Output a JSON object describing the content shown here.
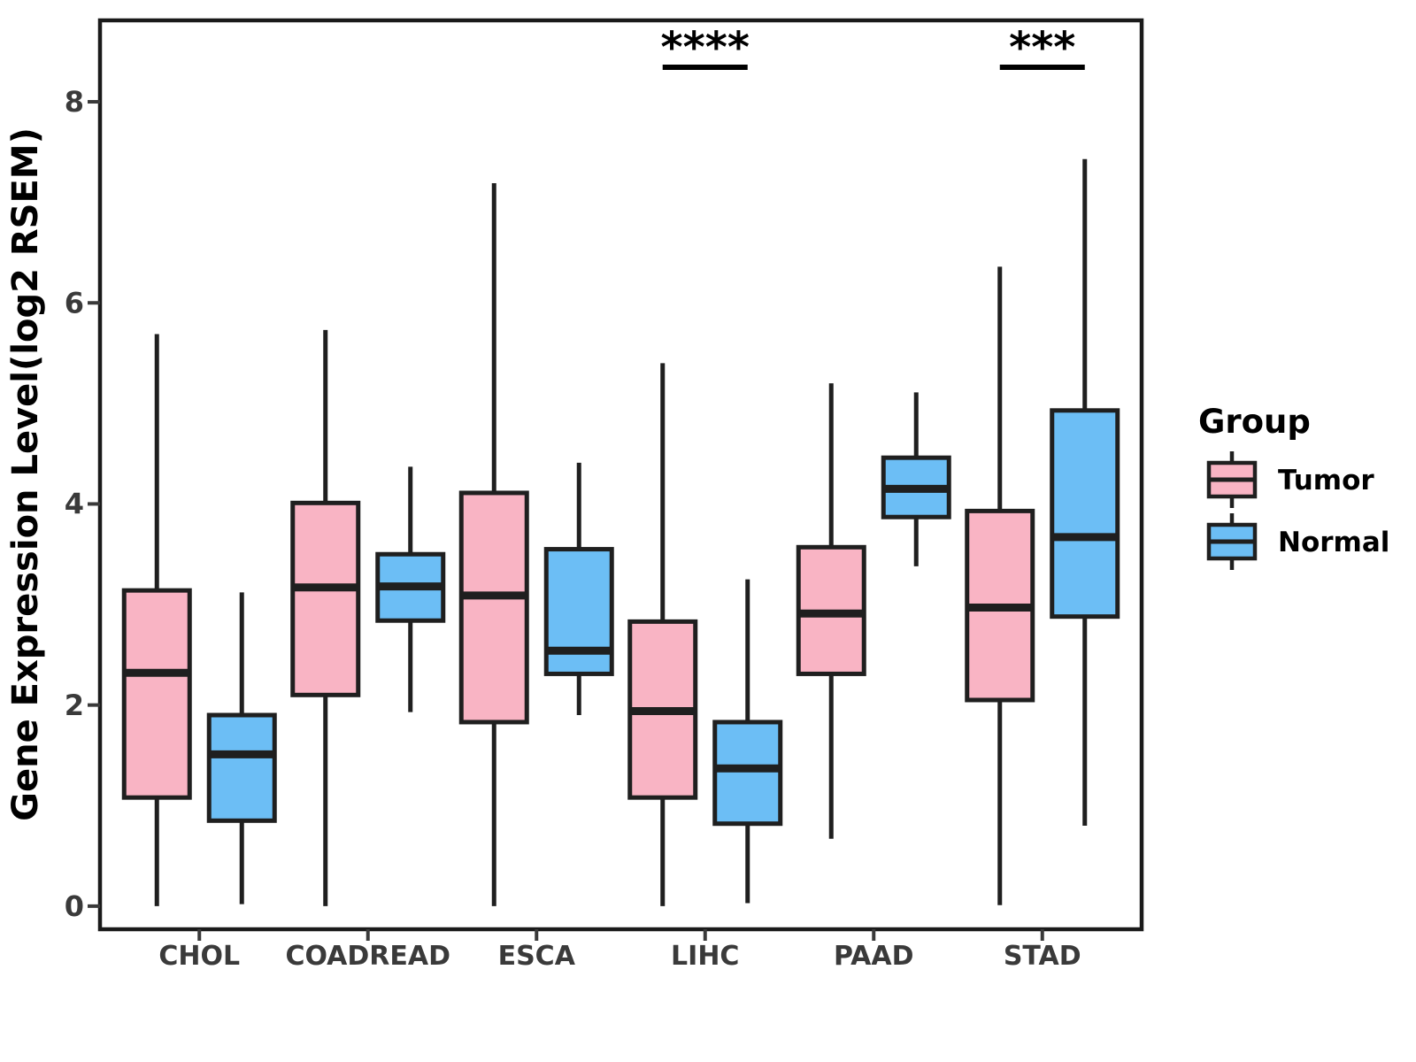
{
  "figure": {
    "aria_label": "Boxplot of gene expression level (log2 RSEM) for Tumor and Normal groups across six cancer types"
  },
  "colors": {
    "tumor_fill": "#F9B4C4",
    "normal_fill": "#6CBEF5",
    "line": "#1F1F1F",
    "axis_text": "#3A3A3A",
    "title_text": "#000000",
    "border": "#1A1A1A"
  },
  "y_axis": {
    "label": "Gene Expression Level(log2 RSEM)",
    "tick_labels": [
      "0",
      "2",
      "4",
      "6",
      "8"
    ]
  },
  "legend": {
    "title": "Group",
    "entries": [
      {
        "label": "Tumor",
        "fill": "#F9B4C4"
      },
      {
        "label": "Normal",
        "fill": "#6CBEF5"
      }
    ]
  },
  "chart_data": {
    "type": "boxplot",
    "title": "",
    "xlabel": "",
    "ylabel": "Gene Expression Level(log2 RSEM)",
    "categories": [
      "CHOL",
      "COADREAD",
      "ESCA",
      "LIHC",
      "PAAD",
      "STAD"
    ],
    "ylim": [
      -0.23,
      8.81
    ],
    "yticks": [
      0,
      2,
      4,
      6,
      8
    ],
    "grid": false,
    "legend_position": "right",
    "series": [
      {
        "name": "Tumor",
        "fill": "#F9B4C4",
        "boxes": [
          {
            "category": "CHOL",
            "whisker_low": 0.0,
            "q1": 1.08,
            "median": 2.32,
            "q3": 3.14,
            "whisker_high": 5.69
          },
          {
            "category": "COADREAD",
            "whisker_low": 0.0,
            "q1": 2.1,
            "median": 3.17,
            "q3": 4.01,
            "whisker_high": 5.73
          },
          {
            "category": "ESCA",
            "whisker_low": 0.0,
            "q1": 1.83,
            "median": 3.09,
            "q3": 4.11,
            "whisker_high": 7.19
          },
          {
            "category": "LIHC",
            "whisker_low": 0.0,
            "q1": 1.08,
            "median": 1.94,
            "q3": 2.83,
            "whisker_high": 5.4
          },
          {
            "category": "PAAD",
            "whisker_low": 0.67,
            "q1": 2.31,
            "median": 2.91,
            "q3": 3.57,
            "whisker_high": 5.2
          },
          {
            "category": "STAD",
            "whisker_low": 0.01,
            "q1": 2.05,
            "median": 2.97,
            "q3": 3.93,
            "whisker_high": 6.36
          }
        ]
      },
      {
        "name": "Normal",
        "fill": "#6CBEF5",
        "boxes": [
          {
            "category": "CHOL",
            "whisker_low": 0.02,
            "q1": 0.85,
            "median": 1.51,
            "q3": 1.9,
            "whisker_high": 3.12
          },
          {
            "category": "COADREAD",
            "whisker_low": 1.93,
            "q1": 2.84,
            "median": 3.18,
            "q3": 3.5,
            "whisker_high": 4.37
          },
          {
            "category": "ESCA",
            "whisker_low": 1.9,
            "q1": 2.31,
            "median": 2.54,
            "q3": 3.55,
            "whisker_high": 4.41
          },
          {
            "category": "LIHC",
            "whisker_low": 0.03,
            "q1": 0.82,
            "median": 1.37,
            "q3": 1.83,
            "whisker_high": 3.25
          },
          {
            "category": "PAAD",
            "whisker_low": 3.38,
            "q1": 3.87,
            "median": 4.15,
            "q3": 4.46,
            "whisker_high": 5.11
          },
          {
            "category": "STAD",
            "whisker_low": 0.8,
            "q1": 2.88,
            "median": 3.67,
            "q3": 4.93,
            "whisker_high": 7.43
          }
        ]
      }
    ],
    "annotations": [
      {
        "category": "LIHC",
        "text": "****"
      },
      {
        "category": "STAD",
        "text": "***"
      }
    ]
  }
}
